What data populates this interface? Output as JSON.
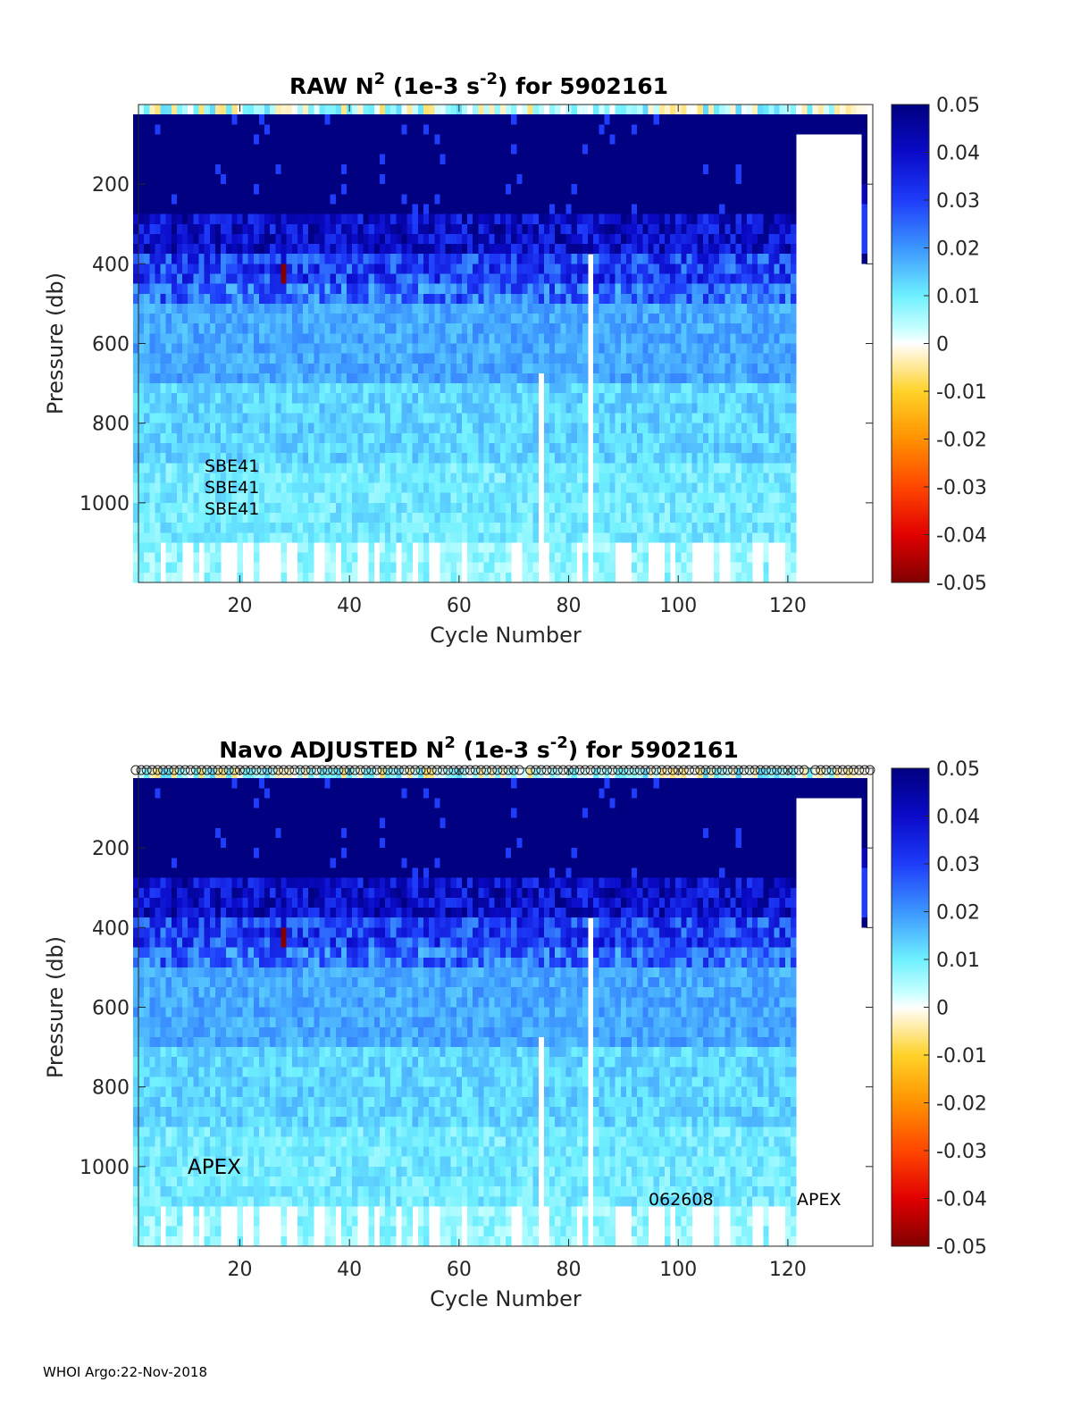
{
  "footer": "WHOI Argo:22-Nov-2018",
  "colorbar": {
    "ticks": [
      "0.05",
      "0.04",
      "0.03",
      "0.02",
      "0.01",
      "0",
      "-0.01",
      "-0.02",
      "-0.03",
      "-0.04",
      "-0.05"
    ],
    "range": [
      -0.05,
      0.05
    ]
  },
  "chart_data": [
    {
      "type": "heatmap",
      "title": {
        "pre": "RAW N",
        "sup1": "2",
        "mid": " (1e-3 s",
        "sup2": "-2",
        "post": ") for 5902161"
      },
      "xlabel": "Cycle Number",
      "ylabel": "Pressure (db)",
      "xticks": [
        20,
        40,
        60,
        80,
        100,
        120
      ],
      "yticks": [
        200,
        400,
        600,
        800,
        1000
      ],
      "xlim": [
        1.5,
        135.5
      ],
      "ylim": [
        0,
        1200
      ],
      "annotations": [
        "SBE41",
        "SBE41",
        "SBE41"
      ],
      "cycles_with_data": [
        1,
        121
      ],
      "extra_profile_cycle": 134,
      "missing_cycles_at_depth": [
        75,
        84
      ],
      "anomaly": {
        "cycle": 28,
        "pressure_range": [
          400,
          450
        ],
        "value": -0.05
      },
      "depth_bands": [
        {
          "pmin": 0,
          "pmax": 25,
          "approx_value": 0.005,
          "note": "near-zero mixed layer"
        },
        {
          "pmin": 25,
          "pmax": 275,
          "approx_value": 0.05
        },
        {
          "pmin": 275,
          "pmax": 375,
          "approx_value": 0.04
        },
        {
          "pmin": 375,
          "pmax": 450,
          "approx_value": 0.03
        },
        {
          "pmin": 450,
          "pmax": 500,
          "approx_value": 0.025
        },
        {
          "pmin": 500,
          "pmax": 700,
          "approx_value": 0.018
        },
        {
          "pmin": 700,
          "pmax": 900,
          "approx_value": 0.013
        },
        {
          "pmin": 900,
          "pmax": 1100,
          "approx_value": 0.01
        },
        {
          "pmin": 1100,
          "pmax": 1200,
          "approx_value": 0.007
        }
      ]
    },
    {
      "type": "heatmap",
      "title": {
        "pre": "Navo  ADJUSTED N",
        "sup1": "2",
        "mid": " (1e-3 s",
        "sup2": "-2",
        "post": ") for 5902161"
      },
      "xlabel": "Cycle Number",
      "ylabel": "Pressure (db)",
      "xticks": [
        20,
        40,
        60,
        80,
        100,
        120
      ],
      "yticks": [
        200,
        400,
        600,
        800,
        1000
      ],
      "xlim": [
        1.5,
        135.5
      ],
      "ylim": [
        0,
        1200
      ],
      "annotations": [
        "APEX",
        "062608",
        "APEX"
      ],
      "qc_marker_symbol": "o",
      "cycles_with_data": [
        1,
        121
      ],
      "extra_profile_cycle": 134,
      "missing_cycles_at_depth": [
        75,
        84
      ],
      "anomaly": {
        "cycle": 28,
        "pressure_range": [
          400,
          450
        ],
        "value": -0.05
      },
      "depth_bands": [
        {
          "pmin": 0,
          "pmax": 25,
          "approx_value": 0.005,
          "note": "near-zero mixed layer"
        },
        {
          "pmin": 25,
          "pmax": 275,
          "approx_value": 0.05
        },
        {
          "pmin": 275,
          "pmax": 375,
          "approx_value": 0.04
        },
        {
          "pmin": 375,
          "pmax": 450,
          "approx_value": 0.03
        },
        {
          "pmin": 450,
          "pmax": 500,
          "approx_value": 0.025
        },
        {
          "pmin": 500,
          "pmax": 700,
          "approx_value": 0.018
        },
        {
          "pmin": 700,
          "pmax": 900,
          "approx_value": 0.013
        },
        {
          "pmin": 900,
          "pmax": 1100,
          "approx_value": 0.01
        },
        {
          "pmin": 1100,
          "pmax": 1200,
          "approx_value": 0.007
        }
      ]
    }
  ]
}
